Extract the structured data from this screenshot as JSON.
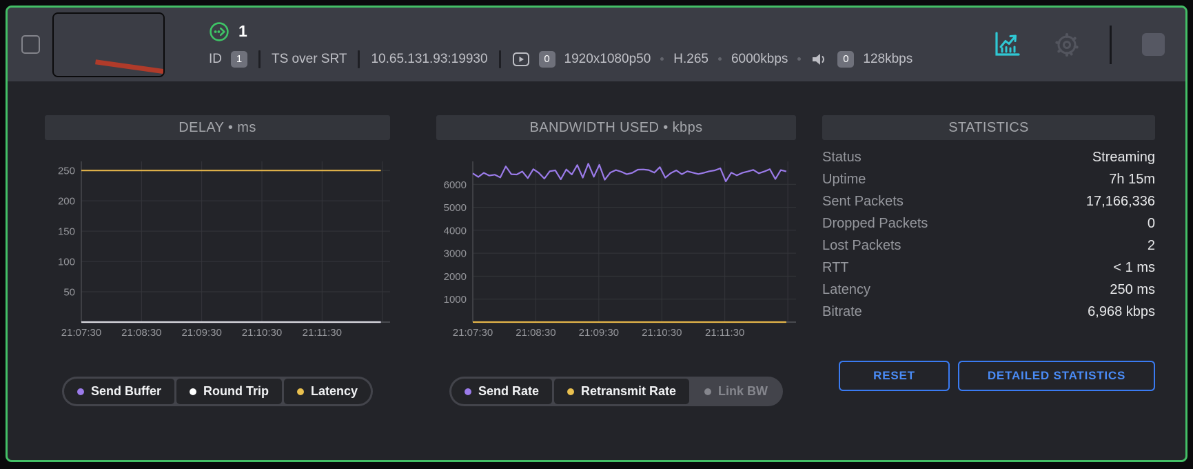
{
  "header": {
    "title_number": "1",
    "id_label": "ID",
    "id_value": "1",
    "protocol": "TS over SRT",
    "address": "10.65.131.93:19930",
    "video_badge": "0",
    "resolution": "1920x1080p50",
    "codec": "H.265",
    "video_bitrate": "6000kbps",
    "audio_badge": "0",
    "audio_bitrate": "128kbps"
  },
  "icons": {
    "stream_output": "circle-with-dots-and-chevron",
    "video": "play-in-rounded-rect",
    "audio": "speaker",
    "statistics": "line-chart-with-arrow",
    "settings": "gear",
    "stop": "filled-square",
    "select": "empty-checkbox"
  },
  "colors": {
    "card_border_green": "#43bf66",
    "header_bg": "#3b3d45",
    "body_bg": "#232429",
    "accent_teal": "#2fc8d4",
    "accent_blue": "#4a8cf7",
    "accent_purple": "#9b7bea",
    "accent_yellow": "#e3b54a",
    "grid": "#35363b"
  },
  "chart_data": [
    {
      "type": "line",
      "title": "DELAY • ms",
      "ylabel": "ms",
      "ylim": [
        0,
        265
      ],
      "yticks": [
        50,
        100,
        150,
        200,
        250
      ],
      "xticks": [
        "21:07:30",
        "21:08:30",
        "21:09:30",
        "21:10:30",
        "21:11:30"
      ],
      "grid": true,
      "legend_position": "bottom",
      "series": [
        {
          "name": "Send Buffer",
          "color": "#9b7bea",
          "constant": 0,
          "points": 58
        },
        {
          "name": "Round Trip",
          "color": "#d7d8dc",
          "constant": 0,
          "points": 58
        },
        {
          "name": "Latency",
          "color": "#e3b54a",
          "constant": 250,
          "points": 58
        }
      ],
      "legend": [
        {
          "label": "Send Buffer",
          "color": "#9b7bea",
          "enabled": true
        },
        {
          "label": "Round Trip",
          "color": "#ffffff",
          "enabled": true
        },
        {
          "label": "Latency",
          "color": "#e9c04f",
          "enabled": true
        }
      ]
    },
    {
      "type": "line",
      "title": "BANDWIDTH USED • kbps",
      "ylabel": "kbps",
      "ylim": [
        0,
        7000
      ],
      "yticks": [
        1000,
        2000,
        3000,
        4000,
        5000,
        6000
      ],
      "xticks": [
        "21:07:30",
        "21:08:30",
        "21:09:30",
        "21:10:30",
        "21:11:30"
      ],
      "grid": true,
      "legend_position": "bottom",
      "series": [
        {
          "name": "Send Rate",
          "color": "#9b7bea",
          "values": [
            6480,
            6320,
            6500,
            6380,
            6420,
            6300,
            6780,
            6440,
            6430,
            6560,
            6270,
            6660,
            6500,
            6250,
            6570,
            6610,
            6220,
            6650,
            6430,
            6840,
            6290,
            6900,
            6330,
            6850,
            6200,
            6510,
            6620,
            6550,
            6440,
            6500,
            6640,
            6650,
            6620,
            6510,
            6750,
            6290,
            6490,
            6610,
            6440,
            6570,
            6510,
            6450,
            6500,
            6570,
            6610,
            6700,
            6130,
            6510,
            6390,
            6500,
            6560,
            6630,
            6480,
            6560,
            6660,
            6230,
            6620,
            6560
          ]
        },
        {
          "name": "Retransmit Rate",
          "color": "#e3b54a",
          "constant": 0,
          "points": 58
        },
        {
          "name": "Link BW",
          "color": "#85868d",
          "hidden": true
        }
      ],
      "legend": [
        {
          "label": "Send Rate",
          "color": "#9b7bea",
          "enabled": true
        },
        {
          "label": "Retransmit Rate",
          "color": "#e9c04f",
          "enabled": true
        },
        {
          "label": "Link BW",
          "color": "#85868d",
          "enabled": false
        }
      ]
    }
  ],
  "statistics": {
    "title": "STATISTICS",
    "rows": [
      {
        "label": "Status",
        "value": "Streaming"
      },
      {
        "label": "Uptime",
        "value": "7h 15m"
      },
      {
        "label": "Sent Packets",
        "value": "17,166,336"
      },
      {
        "label": "Dropped Packets",
        "value": "0"
      },
      {
        "label": "Lost Packets",
        "value": "2"
      },
      {
        "label": "RTT",
        "value": "< 1 ms"
      },
      {
        "label": "Latency",
        "value": "250 ms"
      },
      {
        "label": "Bitrate",
        "value": "6,968 kbps"
      }
    ],
    "buttons": [
      "RESET",
      "DETAILED STATISTICS"
    ]
  }
}
